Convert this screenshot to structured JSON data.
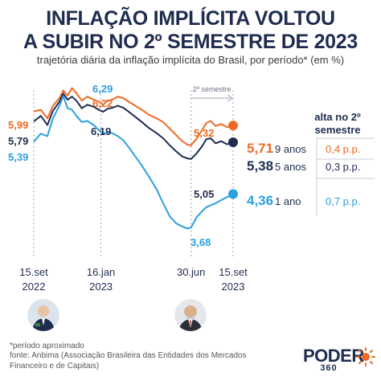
{
  "header": {
    "title_line1": "INFLAÇÃO IMPLÍCITA VOLTOU",
    "title_line2": "A SUBIR NO 2º SEMESTRE DE 2023",
    "subtitle": "trajetória diária da inflação implícita do Brasil, por período* (em %)"
  },
  "footer": {
    "note": "*período aproximado",
    "source_line1": "fonte: Anbima (Associação Brasileira das Entidades dos Mercados",
    "source_line2": "Financeiro e de Capitais)",
    "logo": "PODER",
    "logo_sub": "360"
  },
  "colors": {
    "nine_years": "#ee6a24",
    "five_years": "#1f2c4f",
    "one_year": "#2b9fe0",
    "title": "#1f2c4f",
    "increase": "#ee6a24"
  },
  "chart_data": {
    "type": "line",
    "x_ticks": [
      {
        "line1": "15.set",
        "line2": "2022",
        "date": "2022-09-15"
      },
      {
        "line1": "16.jan",
        "line2": "2023",
        "date": "2023-01-16"
      },
      {
        "line1": "30.jun",
        "line2": "",
        "date": "2023-06-30"
      },
      {
        "line1": "15.set",
        "line2": "2023",
        "date": "2023-09-15"
      }
    ],
    "period_label": "2º semestre",
    "period_start": "2023-06-30",
    "table_header": "alta no 2º semestre",
    "series": [
      {
        "name": "9 anos",
        "color": "#ee6a24",
        "end_label": "5,71",
        "increase": "0,4 p.p.",
        "start_label": "5,99",
        "points": [
          [
            "2022-09-15",
            5.99
          ],
          [
            "2022-09-28",
            6.02
          ],
          [
            "2022-10-10",
            5.85
          ],
          [
            "2022-10-20",
            6.1
          ],
          [
            "2022-11-01",
            6.25
          ],
          [
            "2022-11-08",
            6.4
          ],
          [
            "2022-11-16",
            6.3
          ],
          [
            "2022-11-24",
            6.45
          ],
          [
            "2022-12-02",
            6.35
          ],
          [
            "2022-12-12",
            6.2
          ],
          [
            "2022-12-22",
            6.28
          ],
          [
            "2023-01-03",
            6.22
          ],
          [
            "2023-01-12",
            6.18
          ],
          [
            "2023-01-20",
            6.12
          ],
          [
            "2023-01-28",
            6.2
          ],
          [
            "2023-02-06",
            6.22
          ],
          [
            "2023-02-16",
            6.28
          ],
          [
            "2023-02-26",
            6.25
          ],
          [
            "2023-03-08",
            6.18
          ],
          [
            "2023-03-20",
            6.1
          ],
          [
            "2023-04-01",
            6.02
          ],
          [
            "2023-04-14",
            5.92
          ],
          [
            "2023-04-28",
            5.85
          ],
          [
            "2023-05-10",
            5.78
          ],
          [
            "2023-05-22",
            5.65
          ],
          [
            "2023-06-03",
            5.52
          ],
          [
            "2023-06-14",
            5.4
          ],
          [
            "2023-06-24",
            5.33
          ],
          [
            "2023-06-30",
            5.32
          ],
          [
            "2023-07-10",
            5.45
          ],
          [
            "2023-07-20",
            5.62
          ],
          [
            "2023-07-28",
            5.76
          ],
          [
            "2023-08-05",
            5.8
          ],
          [
            "2023-08-14",
            5.7
          ],
          [
            "2023-08-24",
            5.74
          ],
          [
            "2023-09-04",
            5.68
          ],
          [
            "2023-09-15",
            5.71
          ]
        ]
      },
      {
        "name": "5 anos",
        "color": "#1f2c4f",
        "end_label": "5,38",
        "increase": "0,3 p.p.",
        "start_label": "5,79",
        "points": [
          [
            "2022-09-15",
            5.79
          ],
          [
            "2022-09-28",
            5.9
          ],
          [
            "2022-10-10",
            5.72
          ],
          [
            "2022-10-20",
            6.0
          ],
          [
            "2022-11-01",
            6.18
          ],
          [
            "2022-11-08",
            6.34
          ],
          [
            "2022-11-16",
            6.22
          ],
          [
            "2022-11-24",
            6.28
          ],
          [
            "2022-12-02",
            6.2
          ],
          [
            "2022-12-12",
            6.05
          ],
          [
            "2022-12-22",
            6.12
          ],
          [
            "2023-01-03",
            6.08
          ],
          [
            "2023-01-12",
            6.02
          ],
          [
            "2023-01-20",
            5.98
          ],
          [
            "2023-01-28",
            6.04
          ],
          [
            "2023-02-06",
            6.06
          ],
          [
            "2023-02-16",
            6.1
          ],
          [
            "2023-02-26",
            6.06
          ],
          [
            "2023-03-08",
            5.98
          ],
          [
            "2023-03-20",
            5.88
          ],
          [
            "2023-04-01",
            5.78
          ],
          [
            "2023-04-14",
            5.66
          ],
          [
            "2023-04-28",
            5.56
          ],
          [
            "2023-05-10",
            5.46
          ],
          [
            "2023-05-22",
            5.32
          ],
          [
            "2023-06-03",
            5.2
          ],
          [
            "2023-06-14",
            5.1
          ],
          [
            "2023-06-24",
            5.06
          ],
          [
            "2023-06-30",
            5.05
          ],
          [
            "2023-07-10",
            5.16
          ],
          [
            "2023-07-20",
            5.3
          ],
          [
            "2023-07-28",
            5.44
          ],
          [
            "2023-08-05",
            5.46
          ],
          [
            "2023-08-14",
            5.36
          ],
          [
            "2023-08-24",
            5.4
          ],
          [
            "2023-09-04",
            5.34
          ],
          [
            "2023-09-15",
            5.38
          ]
        ]
      },
      {
        "name": "1 ano",
        "color": "#2b9fe0",
        "end_label": "4,36",
        "increase": "0,7 p.p.",
        "start_label": "5,39",
        "points": [
          [
            "2022-09-15",
            5.39
          ],
          [
            "2022-09-28",
            5.55
          ],
          [
            "2022-10-10",
            5.5
          ],
          [
            "2022-10-20",
            5.85
          ],
          [
            "2022-11-01",
            6.1
          ],
          [
            "2022-11-08",
            6.29
          ],
          [
            "2022-11-16",
            6.05
          ],
          [
            "2022-11-24",
            6.02
          ],
          [
            "2022-12-02",
            5.9
          ],
          [
            "2022-12-12",
            5.78
          ],
          [
            "2022-12-22",
            5.8
          ],
          [
            "2023-01-03",
            5.72
          ],
          [
            "2023-01-12",
            5.62
          ],
          [
            "2023-01-20",
            5.55
          ],
          [
            "2023-01-28",
            5.58
          ],
          [
            "2023-02-06",
            5.56
          ],
          [
            "2023-02-16",
            5.5
          ],
          [
            "2023-02-26",
            5.42
          ],
          [
            "2023-03-08",
            5.28
          ],
          [
            "2023-03-20",
            5.1
          ],
          [
            "2023-04-01",
            4.92
          ],
          [
            "2023-04-14",
            4.7
          ],
          [
            "2023-04-28",
            4.45
          ],
          [
            "2023-05-10",
            4.18
          ],
          [
            "2023-05-22",
            3.92
          ],
          [
            "2023-06-03",
            3.78
          ],
          [
            "2023-06-14",
            3.72
          ],
          [
            "2023-06-24",
            3.68
          ],
          [
            "2023-06-30",
            3.7
          ],
          [
            "2023-07-10",
            3.9
          ],
          [
            "2023-07-20",
            4.02
          ],
          [
            "2023-07-28",
            4.1
          ],
          [
            "2023-08-05",
            4.14
          ],
          [
            "2023-08-14",
            4.18
          ],
          [
            "2023-08-24",
            4.24
          ],
          [
            "2023-09-04",
            4.3
          ],
          [
            "2023-09-15",
            4.36
          ]
        ]
      }
    ],
    "annotations": [
      {
        "text": "6,29",
        "color": "#2b9fe0"
      },
      {
        "text": "6,22",
        "color": "#ee6a24"
      },
      {
        "text": "6,19",
        "color": "#1f2c4f"
      },
      {
        "text": "5,32",
        "color": "#ee6a24"
      },
      {
        "text": "5,05",
        "color": "#1f2c4f"
      },
      {
        "text": "3,68",
        "color": "#2b9fe0"
      }
    ],
    "ylim": [
      3.4,
      6.6
    ]
  }
}
